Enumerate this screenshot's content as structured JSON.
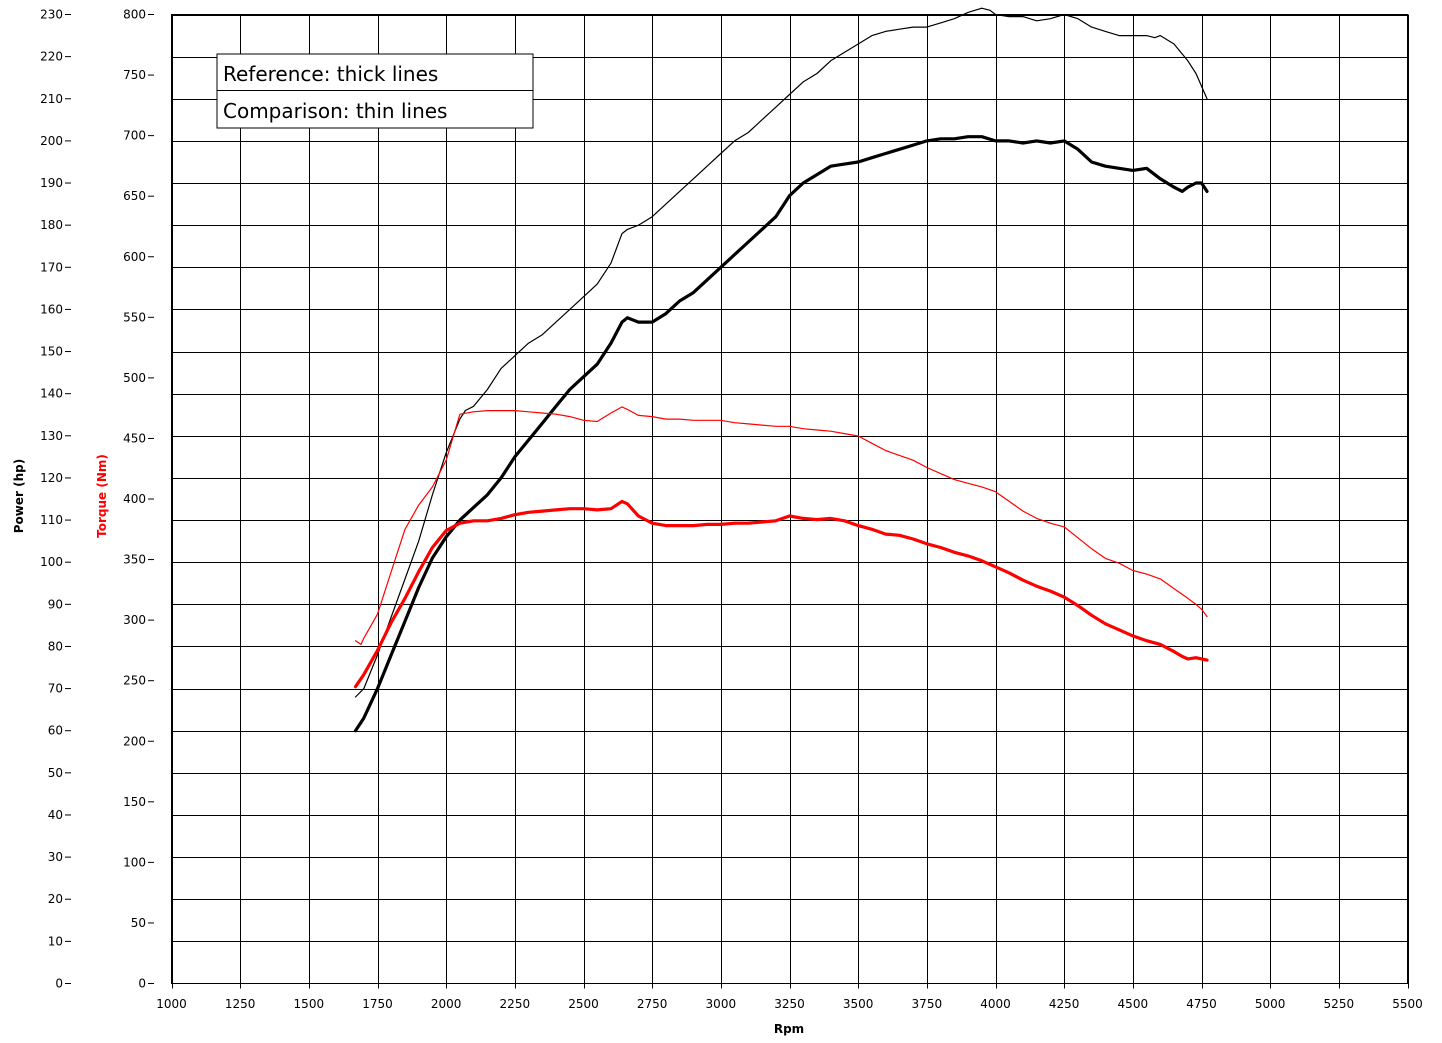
{
  "chart_data": {
    "type": "line",
    "title": "",
    "xlabel": "Rpm",
    "ylabel_left": "Power (hp)",
    "ylabel_right": "Torque (Nm)",
    "xlim": [
      1000,
      5500
    ],
    "ylim_power": [
      0,
      230
    ],
    "ylim_torque": [
      0,
      800
    ],
    "x_ticks": [
      "1000",
      "1250",
      "1500",
      "1750",
      "2000",
      "2250",
      "2500",
      "2750",
      "3000",
      "3250",
      "3500",
      "3750",
      "4000",
      "4250",
      "4500",
      "4750",
      "5000",
      "5250",
      "5500"
    ],
    "power_ticks": [
      "0",
      "10",
      "20",
      "30",
      "40",
      "50",
      "60",
      "70",
      "80",
      "90",
      "100",
      "110",
      "120",
      "130",
      "140",
      "150",
      "160",
      "170",
      "180",
      "190",
      "200",
      "210",
      "220",
      "230"
    ],
    "torque_ticks": [
      "0",
      "50",
      "100",
      "150",
      "200",
      "250",
      "300",
      "350",
      "400",
      "450",
      "500",
      "550",
      "600",
      "650",
      "700",
      "750",
      "800"
    ],
    "grid": true,
    "legend": {
      "position": "top-left",
      "entries": [
        "Reference: thick lines",
        "Comparison: thin lines"
      ]
    },
    "colors": {
      "power": "#000000",
      "torque": "#ff0000",
      "grid": "#000000"
    },
    "series": [
      {
        "name": "Reference power",
        "axis": "power",
        "style": "thick",
        "color": "#000000",
        "x": [
          1670,
          1700,
          1750,
          1800,
          1850,
          1900,
          1950,
          2000,
          2050,
          2100,
          2150,
          2200,
          2250,
          2300,
          2350,
          2400,
          2450,
          2500,
          2550,
          2600,
          2640,
          2660,
          2700,
          2750,
          2800,
          2850,
          2900,
          2950,
          3000,
          3050,
          3100,
          3150,
          3200,
          3250,
          3300,
          3350,
          3400,
          3450,
          3500,
          3550,
          3600,
          3650,
          3700,
          3750,
          3800,
          3850,
          3900,
          3950,
          4000,
          4050,
          4100,
          4150,
          4200,
          4250,
          4300,
          4350,
          4400,
          4450,
          4500,
          4550,
          4600,
          4650,
          4680,
          4700,
          4730,
          4750,
          4770
        ],
        "y": [
          60,
          63,
          70,
          78,
          86,
          94,
          101,
          106,
          110,
          113,
          116,
          120,
          125,
          129,
          133,
          137,
          141,
          144,
          147,
          152,
          157,
          158,
          157,
          157,
          159,
          162,
          164,
          167,
          170,
          173,
          176,
          179,
          182,
          187,
          190,
          192,
          194,
          194.5,
          195,
          196,
          197,
          198,
          199,
          200,
          200.5,
          200.5,
          201,
          201,
          200,
          200,
          199.5,
          200,
          199.5,
          200,
          198,
          195,
          194,
          193.5,
          193,
          193.5,
          191,
          189,
          188,
          189,
          190,
          190,
          188
        ]
      },
      {
        "name": "Comparison power",
        "axis": "power",
        "style": "thin",
        "color": "#000000",
        "x": [
          1670,
          1700,
          1750,
          1800,
          1850,
          1900,
          1950,
          2000,
          2050,
          2070,
          2100,
          2150,
          2200,
          2250,
          2300,
          2350,
          2400,
          2450,
          2500,
          2550,
          2600,
          2640,
          2660,
          2700,
          2750,
          2800,
          2850,
          2900,
          2950,
          3000,
          3050,
          3100,
          3150,
          3200,
          3250,
          3300,
          3350,
          3400,
          3450,
          3500,
          3550,
          3600,
          3650,
          3700,
          3750,
          3800,
          3850,
          3900,
          3950,
          3980,
          4000,
          4050,
          4100,
          4150,
          4200,
          4250,
          4300,
          4350,
          4400,
          4450,
          4500,
          4550,
          4580,
          4600,
          4650,
          4700,
          4730,
          4750,
          4770
        ],
        "y": [
          68,
          70,
          78,
          87,
          96,
          105,
          116,
          126,
          134,
          136,
          137,
          141,
          146,
          149,
          152,
          154,
          157,
          160,
          163,
          166,
          171,
          178,
          179,
          180,
          182,
          185,
          188,
          191,
          194,
          197,
          200,
          202,
          205,
          208,
          211,
          214,
          216,
          219,
          221,
          223,
          225,
          226,
          226.5,
          227,
          227,
          228,
          229,
          230.5,
          231.5,
          231,
          230,
          229.5,
          229.5,
          228.5,
          229,
          230,
          229,
          227,
          226,
          225,
          225,
          225,
          224.5,
          225,
          223,
          219,
          216,
          213,
          210
        ]
      },
      {
        "name": "Reference torque",
        "axis": "torque",
        "style": "thick",
        "color": "#ff0000",
        "x": [
          1670,
          1700,
          1750,
          1800,
          1850,
          1900,
          1950,
          2000,
          2050,
          2100,
          2150,
          2200,
          2250,
          2300,
          2350,
          2400,
          2450,
          2500,
          2550,
          2600,
          2640,
          2660,
          2700,
          2750,
          2800,
          2850,
          2900,
          2950,
          3000,
          3050,
          3100,
          3150,
          3200,
          3250,
          3300,
          3350,
          3400,
          3450,
          3500,
          3550,
          3600,
          3650,
          3700,
          3750,
          3800,
          3850,
          3900,
          3950,
          4000,
          4050,
          4100,
          4150,
          4200,
          4250,
          4300,
          4350,
          4400,
          4450,
          4500,
          4550,
          4600,
          4650,
          4680,
          4700,
          4730,
          4750,
          4770
        ],
        "y": [
          245,
          255,
          275,
          298,
          318,
          340,
          360,
          374,
          380,
          382,
          382,
          384,
          387,
          389,
          390,
          391,
          392,
          392,
          391,
          392,
          398,
          396,
          386,
          380,
          378,
          378,
          378,
          379,
          379,
          380,
          380,
          381,
          382,
          386,
          384,
          383,
          384,
          382,
          378,
          375,
          371,
          370,
          367,
          363,
          360,
          356,
          353,
          349,
          344,
          339,
          333,
          328,
          324,
          319,
          312,
          304,
          297,
          292,
          287,
          283,
          280,
          274,
          270,
          268,
          269,
          268,
          267
        ]
      },
      {
        "name": "Comparison torque",
        "axis": "torque",
        "style": "thin",
        "color": "#ff0000",
        "x": [
          1670,
          1690,
          1700,
          1750,
          1800,
          1850,
          1900,
          1950,
          2000,
          2050,
          2100,
          2150,
          2200,
          2250,
          2300,
          2350,
          2400,
          2450,
          2500,
          2550,
          2600,
          2640,
          2660,
          2700,
          2750,
          2800,
          2850,
          2900,
          2950,
          3000,
          3050,
          3100,
          3150,
          3200,
          3250,
          3300,
          3350,
          3400,
          3450,
          3500,
          3550,
          3600,
          3650,
          3700,
          3750,
          3800,
          3850,
          3900,
          3950,
          4000,
          4050,
          4100,
          4150,
          4200,
          4250,
          4300,
          4350,
          4400,
          4450,
          4500,
          4550,
          4600,
          4650,
          4700,
          4730,
          4750,
          4770
        ],
        "y": [
          283,
          280,
          285,
          305,
          340,
          375,
          395,
          410,
          432,
          470,
          472,
          473,
          473,
          473,
          472,
          471,
          470,
          468,
          465,
          464,
          471,
          476,
          474,
          469,
          468,
          466,
          466,
          465,
          465,
          465,
          463,
          462,
          461,
          460,
          460,
          458,
          457,
          456,
          454,
          452,
          446,
          440,
          436,
          432,
          426,
          421,
          416,
          413,
          410,
          406,
          398,
          390,
          384,
          380,
          377,
          368,
          359,
          351,
          347,
          341,
          338,
          334,
          326,
          318,
          313,
          309,
          303
        ]
      }
    ]
  }
}
